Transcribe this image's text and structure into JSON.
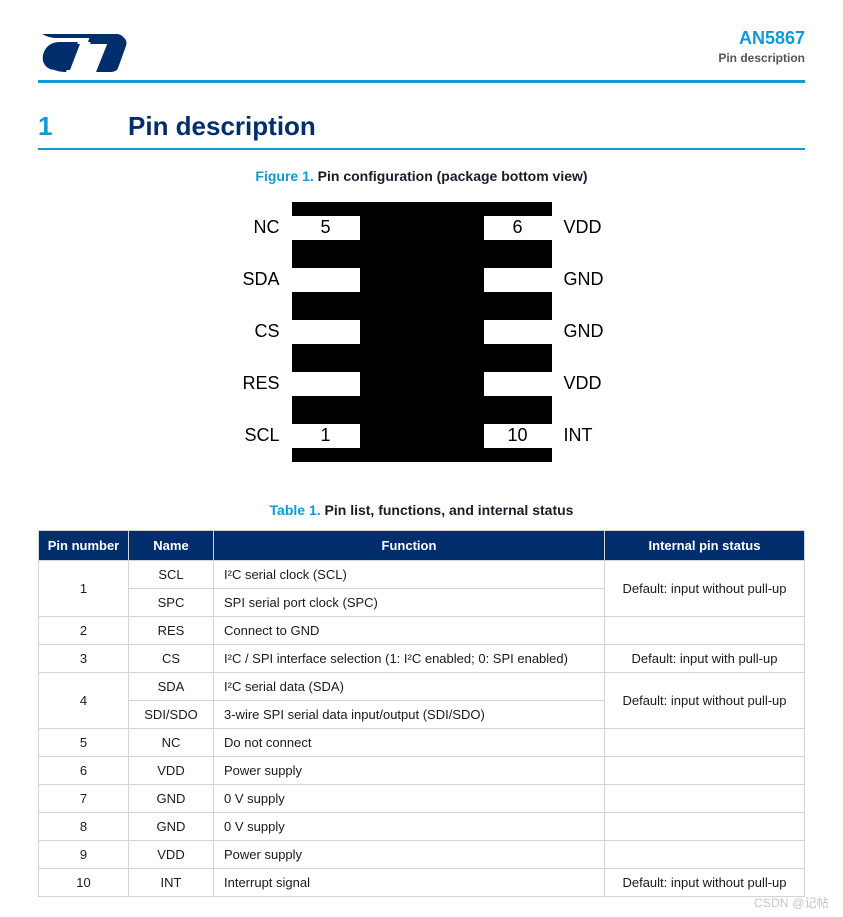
{
  "header": {
    "doc_id": "AN5867",
    "doc_sub": "Pin description",
    "logo_color": "#002e6d"
  },
  "section": {
    "num": "1",
    "title": "Pin description"
  },
  "figure": {
    "lead": "Figure 1.",
    "title": "Pin configuration (package bottom view)",
    "body_color": "#000000",
    "pad_color": "#ffffff",
    "left_labels": [
      "NC",
      "SDA",
      "CS",
      "RES",
      "SCL"
    ],
    "right_labels": [
      "VDD",
      "GND",
      "GND",
      "VDD",
      "INT"
    ],
    "num_top_left": "5",
    "num_top_right": "6",
    "num_bot_left": "1",
    "num_bot_right": "10"
  },
  "table": {
    "lead": "Table 1.",
    "title": "Pin list, functions, and internal status",
    "header_bg": "#002e6d",
    "border_color": "#d0d3d8",
    "columns": [
      "Pin number",
      "Name",
      "Function",
      "Internal pin status"
    ],
    "rows": [
      {
        "pin": "1",
        "names": [
          "SCL",
          "SPC"
        ],
        "funcs": [
          "I²C serial clock (SCL)",
          "SPI serial port clock (SPC)"
        ],
        "status": "Default: input without pull-up"
      },
      {
        "pin": "2",
        "names": [
          "RES"
        ],
        "funcs": [
          "Connect to GND"
        ],
        "status": ""
      },
      {
        "pin": "3",
        "names": [
          "CS"
        ],
        "funcs": [
          "I²C / SPI interface selection (1: I²C enabled; 0: SPI enabled)"
        ],
        "status": "Default: input with pull-up"
      },
      {
        "pin": "4",
        "names": [
          "SDA",
          "SDI/SDO"
        ],
        "funcs": [
          "I²C serial data (SDA)",
          "3-wire SPI serial data input/output (SDI/SDO)"
        ],
        "status": "Default: input without pull-up"
      },
      {
        "pin": "5",
        "names": [
          "NC"
        ],
        "funcs": [
          "Do not connect"
        ],
        "status": ""
      },
      {
        "pin": "6",
        "names": [
          "VDD"
        ],
        "funcs": [
          "Power supply"
        ],
        "status": ""
      },
      {
        "pin": "7",
        "names": [
          "GND"
        ],
        "funcs": [
          "0 V supply"
        ],
        "status": ""
      },
      {
        "pin": "8",
        "names": [
          "GND"
        ],
        "funcs": [
          "0 V supply"
        ],
        "status": ""
      },
      {
        "pin": "9",
        "names": [
          "VDD"
        ],
        "funcs": [
          "Power supply"
        ],
        "status": ""
      },
      {
        "pin": "10",
        "names": [
          "INT"
        ],
        "funcs": [
          "Interrupt signal"
        ],
        "status": "Default: input without pull-up"
      }
    ]
  },
  "accent_color": "#0f9ad6",
  "brand_color": "#002e6d",
  "watermark": "CSDN @记帖"
}
